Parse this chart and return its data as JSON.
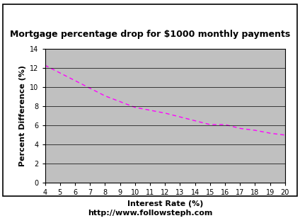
{
  "title": "Mortgage percentage drop for $1000 monthly payments",
  "xlabel": "Interest Rate (%)",
  "ylabel": "Percent Difference (%)",
  "footer": "http://www.followsteph.com",
  "x_values": [
    4,
    5,
    6,
    7,
    8,
    9,
    10,
    11,
    12,
    13,
    14,
    15,
    16,
    17,
    18,
    19,
    20
  ],
  "y_values": [
    12.3,
    11.5,
    10.7,
    9.9,
    9.1,
    8.5,
    7.9,
    7.6,
    7.3,
    6.9,
    6.5,
    6.1,
    6.1,
    5.7,
    5.5,
    5.2,
    5.0
  ],
  "line_color": "#FF00FF",
  "line_style": "dashed",
  "line_width": 1.0,
  "plot_bg_color": "#C0C0C0",
  "fig_bg_color": "#FFFFFF",
  "xlim": [
    4,
    20
  ],
  "ylim": [
    0,
    14
  ],
  "xticks": [
    4,
    5,
    6,
    7,
    8,
    9,
    10,
    11,
    12,
    13,
    14,
    15,
    16,
    17,
    18,
    19,
    20
  ],
  "yticks": [
    0,
    2,
    4,
    6,
    8,
    10,
    12,
    14
  ],
  "title_fontsize": 9,
  "axis_label_fontsize": 8,
  "tick_fontsize": 7,
  "footer_fontsize": 8
}
